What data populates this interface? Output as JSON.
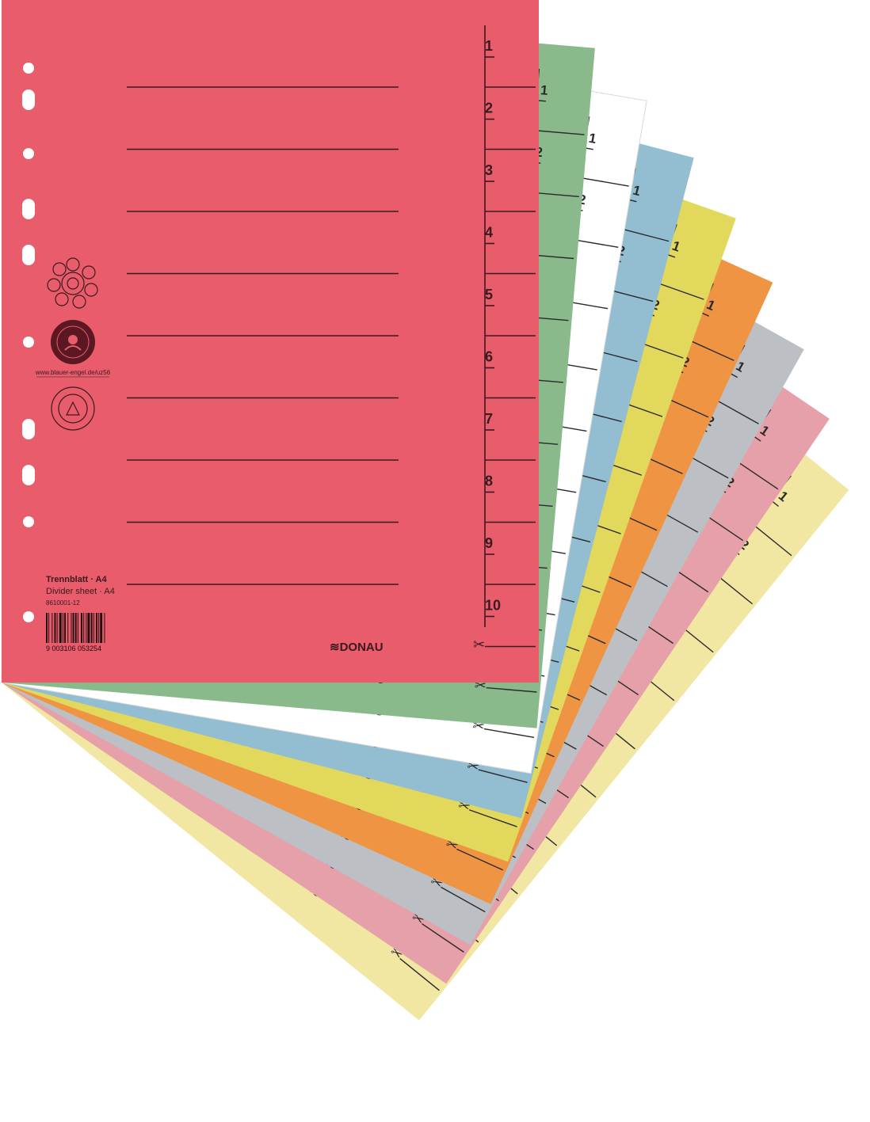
{
  "product": {
    "title_de": "Trennblatt · A4",
    "title_en": "Divider sheet · A4",
    "article_number": "8610001-12",
    "barcode_digits": "9 003106 053254",
    "brand": "DONAU",
    "blauer_engel_url": "www.blauer-engel.de/uz56",
    "label_lines": 9,
    "tab_numbers": [
      "1",
      "2",
      "3",
      "4",
      "5",
      "6",
      "7",
      "8",
      "9",
      "10"
    ]
  },
  "icons": {
    "ecolabel": "recycle-flower-icon",
    "blue_angel": "blauer-engel-icon",
    "recycled_paper": "recycled-paper-icon",
    "scissors": "scissors-icon"
  },
  "sheets": [
    {
      "name": "yellow-pale",
      "color": "#f2e6a3"
    },
    {
      "name": "pink",
      "color": "#e5a0a9"
    },
    {
      "name": "grey",
      "color": "#bcc0c4"
    },
    {
      "name": "orange",
      "color": "#ef9443"
    },
    {
      "name": "yellow",
      "color": "#e2d85c"
    },
    {
      "name": "blue",
      "color": "#93bdd0"
    },
    {
      "name": "white",
      "color": "#ffffff"
    },
    {
      "name": "green",
      "color": "#8aba8c"
    },
    {
      "name": "red",
      "color": "#e85c6c"
    }
  ]
}
